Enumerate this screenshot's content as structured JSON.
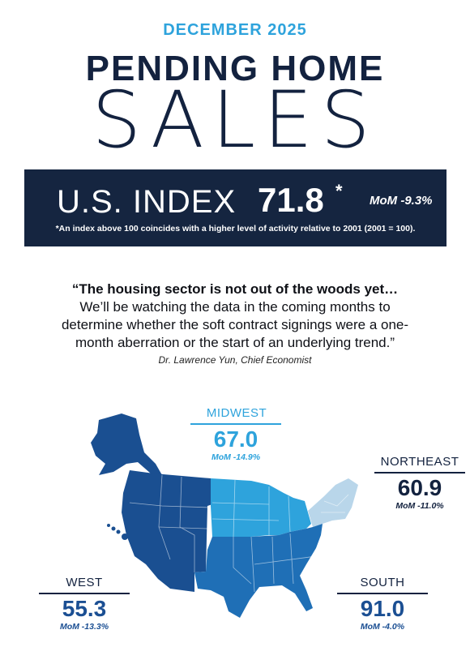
{
  "header": {
    "date": "DECEMBER 2025",
    "title_line1": "PENDING HOME",
    "title_line2": "SALES"
  },
  "index": {
    "label": "U.S. INDEX",
    "value": "71.8",
    "asterisk": "*",
    "mom": "MoM -9.3%",
    "note": "*An index above 100 coincides with a higher level of activity relative to 2001 (2001 = 100)."
  },
  "quote": {
    "line1": "“The housing sector is not out of the woods yet…",
    "line2": "We’ll be watching the data in the coming months to",
    "line3": "determine whether the soft contract signings were a one-",
    "line4": "month aberration or the start of an underlying trend.”",
    "author": "Dr. Lawrence Yun, Chief Economist"
  },
  "regions": {
    "midwest": {
      "name": "MIDWEST",
      "value": "67.0",
      "mom": "MoM -14.9%"
    },
    "northeast": {
      "name": "NORTHEAST",
      "value": "60.9",
      "mom": "MoM -11.0%"
    },
    "west": {
      "name": "WEST",
      "value": "55.3",
      "mom": "MoM -13.3%"
    },
    "south": {
      "name": "SOUTH",
      "value": "91.0",
      "mom": "MoM -4.0%"
    }
  },
  "colors": {
    "navy": "#152540",
    "midwest": "#2ea3dc",
    "northeast": "#b9d6ea",
    "west": "#1a4f91",
    "south": "#1f6fb6"
  }
}
